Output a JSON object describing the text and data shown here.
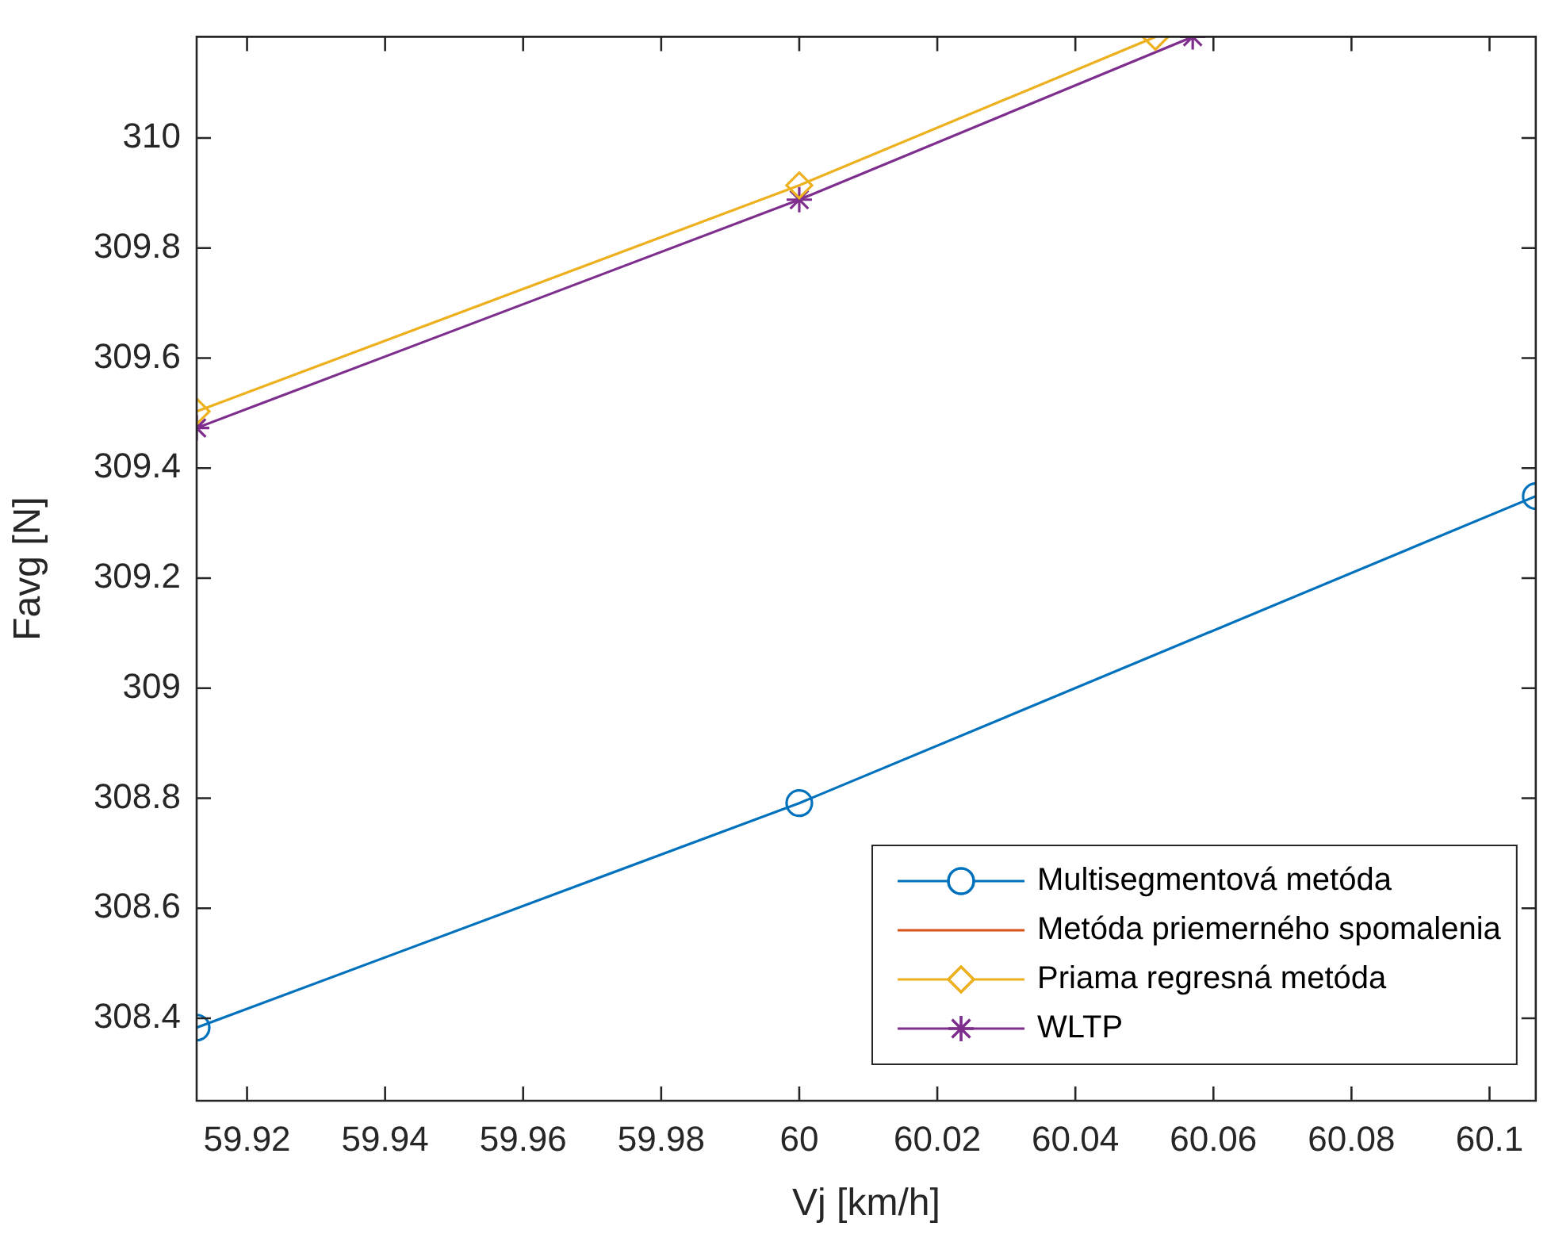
{
  "chart_data": {
    "type": "line",
    "xlabel": "Vj [km/h]",
    "ylabel": "Favg [N]",
    "xlim": [
      59.9127,
      60.1067
    ],
    "ylim": [
      308.25,
      310.184
    ],
    "xticks": [
      59.92,
      59.94,
      59.96,
      59.98,
      60,
      60.02,
      60.04,
      60.06,
      60.08,
      {
        "value": 60.1,
        "label": "60.1"
      }
    ],
    "yticks": [
      308.4,
      308.6,
      308.8,
      309,
      309.2,
      309.4,
      309.6,
      309.8,
      310
    ],
    "grid": false,
    "legend": "bottom right",
    "line_style": "solid",
    "series": [
      {
        "name": "Multisegmentová metóda",
        "color": "#0072bd",
        "marker": "circle",
        "x": [
          59.9127,
          60,
          60.1067
        ],
        "values": [
          308.383,
          308.791,
          309.349
        ]
      },
      {
        "name": "Metóda priemerného spomalenia",
        "color": "#d95319",
        "marker": "none"
      },
      {
        "name": "Priama regresná metóda",
        "color": "#edb120",
        "marker": "diamond",
        "x": [
          59.9127,
          60,
          60.0516
        ],
        "values": [
          309.503,
          309.914,
          310.184
        ]
      },
      {
        "name": "WLTP",
        "color": "#7e2f8e",
        "marker": "cross",
        "x": [
          59.9127,
          60,
          60.057
        ],
        "values": [
          309.473,
          309.888,
          310.184
        ]
      }
    ]
  }
}
